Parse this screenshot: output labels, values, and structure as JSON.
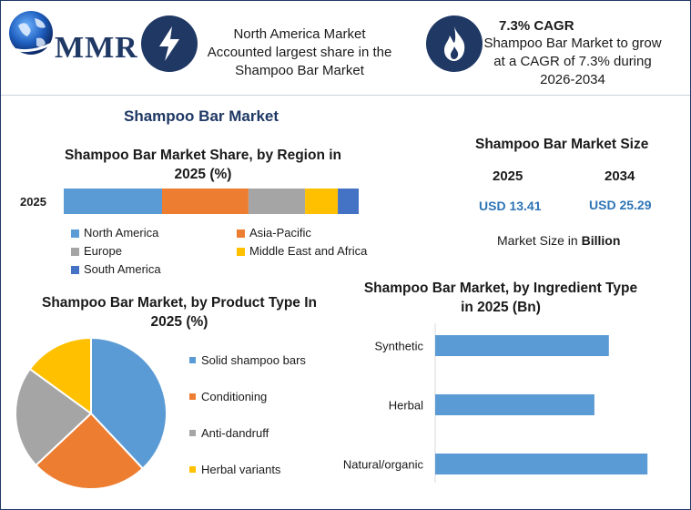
{
  "header": {
    "brand": "MMR",
    "card1_text": "North America Market Accounted largest share in the Shampoo Bar Market",
    "card2_title": "7.3% CAGR",
    "card2_text": "Shampoo Bar Market to grow at a CAGR of 7.3% during 2026-2034"
  },
  "section_title": "Shampoo Bar Market",
  "market_size": {
    "title": "Shampoo Bar Market Size",
    "year_a": "2025",
    "year_b": "2034",
    "value_a": "USD 13.41",
    "value_b": "USD 25.29",
    "note_prefix": "Market Size in ",
    "note_unit": "Billion"
  },
  "colors": {
    "navy": "#1f3864",
    "north_america": "#5b9bd5",
    "asia_pacific": "#ed7d31",
    "europe": "#a5a5a5",
    "mea": "#ffc000",
    "south_america": "#4472c4",
    "usd_text": "#2e75b6"
  },
  "icons": [
    "globe-icon",
    "lightning-icon",
    "flame-icon"
  ],
  "chart_data": [
    {
      "type": "bar",
      "orientation": "horizontal-stacked",
      "title": "Shampoo Bar Market Share, by Region in 2025 (%)",
      "categories": [
        "2025"
      ],
      "series": [
        {
          "name": "North America",
          "values": [
            33
          ]
        },
        {
          "name": "Asia-Pacific",
          "values": [
            29
          ]
        },
        {
          "name": "Europe",
          "values": [
            19
          ]
        },
        {
          "name": "Middle East and Africa",
          "values": [
            11
          ]
        },
        {
          "name": "South America",
          "values": [
            7
          ]
        }
      ],
      "legend_position": "bottom"
    },
    {
      "type": "pie",
      "title": "Shampoo Bar Market, by Product Type In 2025 (%)",
      "labels": [
        "Solid shampoo bars",
        "Conditioning",
        "Anti-dandruff",
        "Herbal variants"
      ],
      "values": [
        38,
        25,
        22,
        15
      ],
      "legend_position": "right"
    },
    {
      "type": "bar",
      "orientation": "horizontal",
      "title": "Shampoo Bar Market, by Ingredient Type in 2025 (Bn)",
      "categories": [
        "Synthetic",
        "Herbal",
        "Natural/organic"
      ],
      "values": [
        3.6,
        3.3,
        4.4
      ],
      "xlim": [
        0,
        5
      ],
      "grid": false
    }
  ]
}
